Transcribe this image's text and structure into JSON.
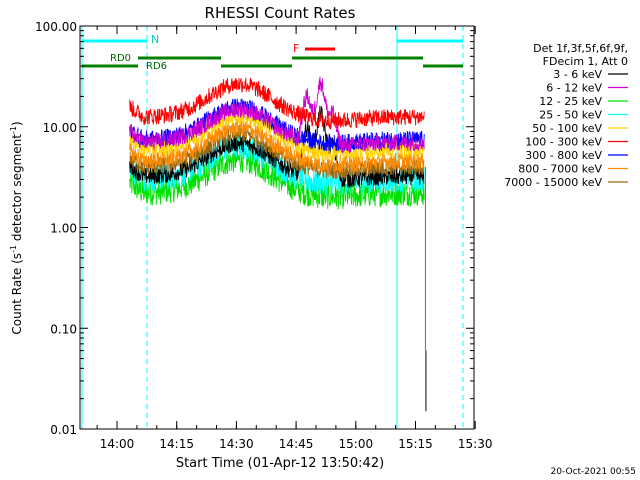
{
  "chart_data": {
    "type": "line",
    "title": "RHESSI Count Rates",
    "xlabel": "Start Time (01-Apr-12 13:50:42)",
    "ylabel": "Count Rate (s^-1 detector segment^-1)",
    "y_scale": "log",
    "ylim": [
      0.01,
      100
    ],
    "xlim_minutes": [
      0,
      99
    ],
    "x_tick_labels": [
      "14:00",
      "14:15",
      "14:30",
      "14:45",
      "15:00",
      "15:15",
      "15:30"
    ],
    "y_tick_labels": [
      "0.01",
      "0.10",
      "1.00",
      "10.00",
      "100.00"
    ],
    "grid": false,
    "legend_position": "right",
    "legend_header": [
      "Det 1f,3f,5f,6f,9f,",
      "FDecim 1, Att 0"
    ],
    "series": [
      {
        "name": "3 - 6 keV",
        "color": "#000000",
        "base": 3.2
      },
      {
        "name": "6 - 12 keV",
        "color": "#d000d0",
        "base": 7.0
      },
      {
        "name": "12 - 25 keV",
        "color": "#00e000",
        "base": 2.2
      },
      {
        "name": "25 - 50 keV",
        "color": "#00ffff",
        "base": 3.0
      },
      {
        "name": "50 - 100 keV",
        "color": "#ffd200",
        "base": 6.0
      },
      {
        "name": "100 - 300 keV",
        "color": "#ff0000",
        "base": 12.5
      },
      {
        "name": "300 - 800 keV",
        "color": "#0000ff",
        "base": 7.5
      },
      {
        "name": "800 - 7000 keV",
        "color": "#ff8c00",
        "base": 4.6
      },
      {
        "name": "7000 - 15000 keV",
        "color": "#9a6a10",
        "base": 4.0
      }
    ],
    "annotations": {
      "N_label": "N",
      "F_label": "F",
      "RD0_label": "RD0",
      "RD6_label": "RD6"
    },
    "footer_timestamp": "20-Oct-2021 00:55"
  }
}
